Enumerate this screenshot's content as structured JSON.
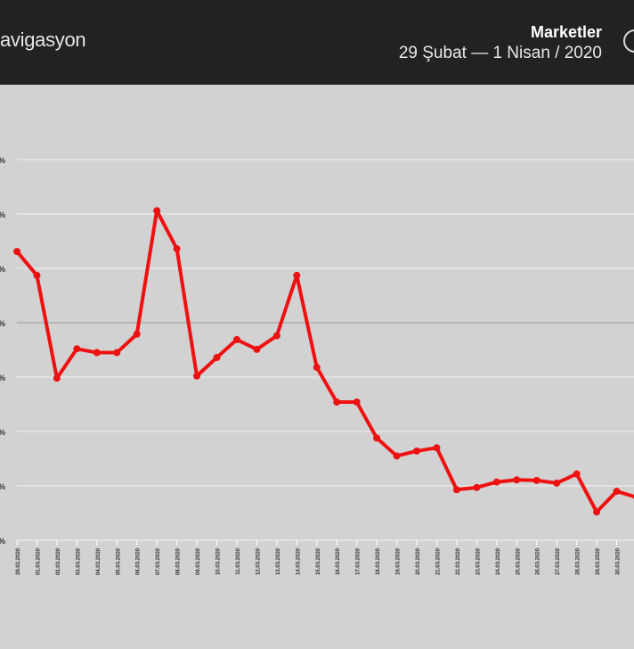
{
  "header": {
    "brand": "avigasyon",
    "title": "Marketler",
    "subtitle": "29 Şubat  —  1 Nisan / 2020"
  },
  "colors": {
    "line": "#ee1111",
    "background": "#d2d2d2",
    "header_bg": "#222222",
    "grid": "#f2f2f2",
    "midline": "#9a9a9a"
  },
  "chart_data": {
    "type": "line",
    "title": "Marketler",
    "xlabel": "",
    "ylabel": "",
    "grid": true,
    "ylim": [
      0,
      7
    ],
    "yticks": [
      0,
      1,
      2,
      3,
      4,
      5,
      6,
      7
    ],
    "ytick_labels": [
      "%",
      "%",
      "%",
      "%",
      "%",
      "%",
      "%",
      "%"
    ],
    "categories": [
      "29.02.2020",
      "01.03.2020",
      "02.03.2020",
      "03.03.2020",
      "04.03.2020",
      "05.03.2020",
      "06.03.2020",
      "07.03.2020",
      "08.03.2020",
      "09.03.2020",
      "10.03.2020",
      "11.03.2020",
      "12.03.2020",
      "13.03.2020",
      "14.03.2020",
      "15.03.2020",
      "16.03.2020",
      "17.03.2020",
      "18.03.2020",
      "19.03.2020",
      "20.03.2020",
      "21.03.2020",
      "22.03.2020",
      "23.03.2020",
      "24.03.2020",
      "25.03.2020",
      "26.03.2020",
      "27.03.2020",
      "28.03.2020",
      "29.03.2020",
      "30.03.2020",
      "31.03.2020"
    ],
    "series": [
      {
        "name": "",
        "values": [
          5.31,
          4.87,
          2.98,
          3.52,
          3.45,
          3.45,
          3.79,
          6.06,
          5.36,
          3.02,
          3.36,
          3.69,
          3.51,
          3.76,
          4.87,
          3.18,
          2.54,
          2.54,
          1.88,
          1.55,
          1.64,
          1.7,
          0.93,
          0.97,
          1.07,
          1.11,
          1.1,
          1.05,
          1.22,
          0.52,
          0.9,
          0.79
        ]
      }
    ]
  }
}
